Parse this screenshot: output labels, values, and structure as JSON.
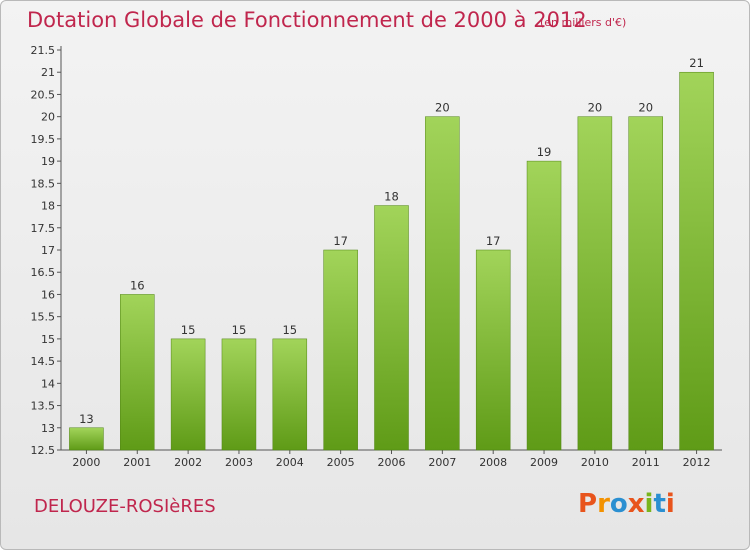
{
  "header": {
    "title": "Dotation Globale de Fonctionnement de 2000 à 2012",
    "units": "(en milliers d'€)"
  },
  "footer": {
    "place_name": "DELOUZE-ROSIèRES",
    "logo_text": "Proxiti"
  },
  "colors": {
    "title": "#c0264d",
    "bar_top": "#a2d45a",
    "bar_bottom": "#5f9b17",
    "logo": [
      "#e8541c",
      "#f39200",
      "#2a8fd1",
      "#e8541c",
      "#7ab51d",
      "#2a8fd1",
      "#e8541c"
    ]
  },
  "chart_data": {
    "type": "bar",
    "categories": [
      "2000",
      "2001",
      "2002",
      "2003",
      "2004",
      "2005",
      "2006",
      "2007",
      "2008",
      "2009",
      "2010",
      "2011",
      "2012"
    ],
    "values": [
      13,
      16,
      15,
      15,
      15,
      17,
      18,
      20,
      17,
      19,
      20,
      20,
      21
    ],
    "data_labels": [
      "13",
      "16",
      "15",
      "15",
      "15",
      "17",
      "18",
      "20",
      "17",
      "19",
      "20",
      "20",
      "21"
    ],
    "y_ticks": [
      "12.5",
      "13",
      "13.5",
      "14",
      "14.5",
      "15",
      "15.5",
      "16",
      "16.5",
      "17",
      "17.5",
      "18",
      "18.5",
      "19",
      "19.5",
      "20",
      "20.5",
      "21",
      "21.5"
    ],
    "ylim": [
      12.5,
      21.5
    ],
    "grid": false,
    "legend": "none"
  }
}
